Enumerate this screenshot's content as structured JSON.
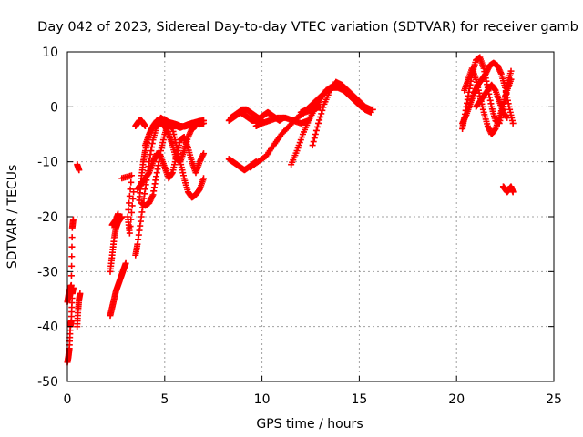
{
  "chart_data": {
    "type": "scatter",
    "title": "Day 042 of 2023, Sidereal Day-to-day VTEC variation (SDTVAR) for receiver gamb",
    "xlabel": "GPS time / hours",
    "ylabel": "SDTVAR / TECUs",
    "xlim": [
      0,
      25
    ],
    "ylim": [
      -50,
      10
    ],
    "xticks": [
      0,
      5,
      10,
      15,
      20,
      25
    ],
    "yticks": [
      -50,
      -40,
      -30,
      -20,
      -10,
      0,
      10
    ],
    "xtick_labels": [
      "0",
      "5",
      "10",
      "15",
      "20",
      "25"
    ],
    "ytick_labels": [
      "-50",
      "-40",
      "-30",
      "-20",
      "-10",
      "0",
      "10"
    ],
    "grid": true,
    "marker": "+",
    "color": "#ff0000",
    "series": [
      {
        "name": "s1",
        "x": [
          0.0,
          0.05,
          0.1,
          0.15,
          0.2,
          0.25,
          0.3
        ],
        "y": [
          -46.5,
          -45.5,
          -44.0,
          -40.0,
          -39.0,
          -34.0,
          -33.0
        ]
      },
      {
        "name": "s2",
        "x": [
          0.0,
          0.05,
          0.1,
          0.15,
          0.2,
          0.25,
          0.3
        ],
        "y": [
          -35.5,
          -34.5,
          -33.5,
          -33.0,
          -32.5,
          -22.0,
          -20.5
        ]
      },
      {
        "name": "s3",
        "x": [
          0.5,
          0.55,
          0.6,
          0.65
        ],
        "y": [
          -40.0,
          -37.0,
          -35.0,
          -34.0
        ]
      },
      {
        "name": "s4",
        "x": [
          0.5,
          0.6
        ],
        "y": [
          -10.5,
          -11.5
        ]
      },
      {
        "name": "s5",
        "x": [
          2.2,
          2.3,
          2.4,
          2.5,
          2.6,
          2.7,
          2.8,
          2.9,
          3.0
        ],
        "y": [
          -38.0,
          -36.5,
          -35.0,
          -33.5,
          -32.5,
          -31.5,
          -30.5,
          -29.5,
          -28.5
        ]
      },
      {
        "name": "s6",
        "x": [
          2.2,
          2.3,
          2.4,
          2.5,
          2.6,
          2.7,
          2.8
        ],
        "y": [
          -30.0,
          -27.0,
          -24.0,
          -22.0,
          -21.0,
          -20.5,
          -20.0
        ]
      },
      {
        "name": "s7",
        "x": [
          2.3,
          2.4,
          2.5,
          2.6
        ],
        "y": [
          -21.5,
          -21.0,
          -20.5,
          -19.5
        ]
      },
      {
        "name": "s8",
        "x": [
          2.8,
          3.3,
          3.1,
          3.2,
          3.4
        ],
        "y": [
          -13.0,
          -12.5,
          -20.0,
          -23.0,
          -15.5
        ]
      },
      {
        "name": "s9",
        "x": [
          3.5,
          3.6,
          3.8,
          4.0,
          4.2,
          4.4,
          4.6,
          4.8,
          5.0,
          5.2,
          5.4,
          5.6,
          5.8,
          6.0,
          6.2,
          6.4,
          6.6,
          6.8,
          7.0
        ],
        "y": [
          -27.0,
          -25.0,
          -20.0,
          -15.0,
          -10.0,
          -6.0,
          -3.5,
          -2.0,
          -2.5,
          -3.0,
          -3.3,
          -3.5,
          -3.8,
          -3.5,
          -3.2,
          -3.0,
          -3.0,
          -3.2,
          -3.0
        ]
      },
      {
        "name": "s10",
        "x": [
          3.7,
          3.8,
          3.9,
          4.0,
          4.2,
          4.4,
          4.6,
          4.8,
          5.0,
          5.2,
          5.4,
          5.6,
          5.8,
          6.0,
          6.2,
          6.4,
          6.6,
          6.8,
          7.0
        ],
        "y": [
          -17.0,
          -13.0,
          -10.0,
          -8.0,
          -5.0,
          -3.5,
          -2.5,
          -2.2,
          -2.3,
          -2.8,
          -3.0,
          -3.2,
          -3.5,
          -3.6,
          -3.4,
          -3.0,
          -2.8,
          -2.6,
          -2.5
        ]
      },
      {
        "name": "s11",
        "x": [
          3.8,
          4.0,
          4.2,
          4.4,
          4.6,
          4.8,
          5.0,
          5.2,
          5.4,
          5.6,
          5.8,
          6.0,
          6.2,
          6.4,
          6.6,
          6.8,
          7.0
        ],
        "y": [
          -17.5,
          -18.0,
          -17.5,
          -16.0,
          -12.0,
          -8.0,
          -5.0,
          -3.0,
          -4.0,
          -7.0,
          -10.0,
          -13.0,
          -15.5,
          -16.5,
          -16.0,
          -15.0,
          -13.0
        ]
      },
      {
        "name": "s12",
        "x": [
          3.6,
          3.8,
          4.0,
          4.2,
          4.4,
          4.6,
          4.8,
          5.0,
          5.2,
          5.4,
          5.6,
          5.8,
          6.0,
          6.2,
          6.4,
          6.6,
          6.8,
          7.0
        ],
        "y": [
          -15.0,
          -14.0,
          -13.0,
          -12.0,
          -10.0,
          -8.5,
          -9.0,
          -11.0,
          -13.0,
          -12.0,
          -9.0,
          -6.0,
          -5.5,
          -7.5,
          -10.0,
          -12.0,
          -10.0,
          -8.5
        ]
      },
      {
        "name": "s13",
        "x": [
          4.0,
          4.2,
          4.4,
          4.6,
          4.8,
          5.0,
          5.2,
          5.4,
          5.6,
          5.8,
          6.0,
          6.2,
          6.4,
          6.6
        ],
        "y": [
          -7.0,
          -5.0,
          -3.5,
          -3.0,
          -3.0,
          -3.5,
          -5.0,
          -7.0,
          -9.5,
          -10.0,
          -8.0,
          -5.5,
          -4.0,
          -3.5
        ]
      },
      {
        "name": "s14",
        "x": [
          3.5,
          3.6,
          3.7,
          3.8,
          3.9,
          4.0
        ],
        "y": [
          -3.5,
          -3.0,
          -2.5,
          -2.5,
          -3.0,
          -3.5
        ]
      },
      {
        "name": "s15",
        "x": [
          8.3,
          8.5,
          8.7,
          8.9,
          9.1,
          9.3,
          9.5,
          9.7
        ],
        "y": [
          -9.5,
          -10.0,
          -10.5,
          -11.0,
          -11.5,
          -11.0,
          -10.5,
          -10.0
        ]
      },
      {
        "name": "s16",
        "x": [
          8.3,
          8.5,
          8.7,
          8.9,
          9.1,
          9.3,
          9.5,
          9.7,
          9.9,
          10.1,
          10.3,
          10.5,
          10.7,
          10.9,
          11.1
        ],
        "y": [
          -2.5,
          -2.0,
          -1.5,
          -1.0,
          -1.5,
          -2.0,
          -2.5,
          -2.5,
          -2.0,
          -1.5,
          -1.0,
          -1.5,
          -2.0,
          -2.5,
          -2.0
        ]
      },
      {
        "name": "s17",
        "x": [
          8.4,
          8.6,
          8.8,
          9.0,
          9.2,
          9.4,
          9.6,
          9.8,
          10.0
        ],
        "y": [
          -2.0,
          -1.5,
          -1.0,
          -0.5,
          -0.5,
          -1.0,
          -1.5,
          -2.0,
          -2.5
        ]
      },
      {
        "name": "s18",
        "x": [
          9.7,
          10.0,
          10.4,
          10.8,
          11.2,
          11.6,
          12.0,
          12.4
        ],
        "y": [
          -3.5,
          -3.0,
          -2.5,
          -2.0,
          -2.0,
          -2.5,
          -3.0,
          -2.5
        ]
      },
      {
        "name": "s19",
        "x": [
          9.4,
          9.8,
          10.2,
          10.6,
          11.0,
          11.4,
          11.8,
          12.2,
          12.6,
          13.0
        ],
        "y": [
          -11.0,
          -10.0,
          -9.0,
          -7.0,
          -5.0,
          -3.5,
          -2.0,
          -1.0,
          -0.5,
          0.0
        ]
      },
      {
        "name": "s20",
        "x": [
          11.5,
          11.8,
          12.1,
          12.4,
          12.7,
          13.0,
          13.3,
          13.6,
          13.9,
          14.2,
          14.5,
          14.8,
          15.1,
          15.4,
          15.7
        ],
        "y": [
          -10.5,
          -8.0,
          -5.0,
          -2.5,
          -0.5,
          1.5,
          3.0,
          3.5,
          3.5,
          3.0,
          2.0,
          1.0,
          0.0,
          -0.5,
          -0.5
        ]
      },
      {
        "name": "s21",
        "x": [
          12.6,
          12.9,
          13.2,
          13.5,
          13.8,
          14.1,
          14.4,
          14.7,
          15.0,
          15.3,
          15.6
        ],
        "y": [
          -7.0,
          -3.0,
          0.5,
          3.0,
          4.5,
          4.0,
          3.0,
          2.0,
          1.0,
          0.0,
          -0.5
        ]
      },
      {
        "name": "s22",
        "x": [
          12.0,
          12.3,
          12.6,
          12.9,
          13.2,
          13.5,
          13.8,
          14.1,
          14.4,
          14.7,
          15.0,
          15.3,
          15.6
        ],
        "y": [
          -1.0,
          -0.5,
          0.5,
          1.5,
          2.5,
          3.5,
          4.0,
          3.5,
          2.5,
          1.5,
          0.5,
          -0.5,
          -1.0
        ]
      },
      {
        "name": "s23",
        "x": [
          20.3,
          20.4,
          20.6,
          20.8,
          21.0,
          21.2,
          21.4,
          21.6,
          21.8,
          22.0,
          22.2,
          22.4,
          22.6,
          22.8
        ],
        "y": [
          -4.0,
          -2.0,
          2.0,
          6.0,
          8.5,
          9.0,
          7.0,
          3.5,
          0.0,
          -2.5,
          -3.0,
          0.0,
          4.0,
          6.5
        ]
      },
      {
        "name": "s24",
        "x": [
          20.3,
          20.5,
          20.7,
          20.9,
          21.1,
          21.3,
          21.5,
          21.7,
          21.9,
          22.1,
          22.3,
          22.5,
          22.7,
          22.9
        ],
        "y": [
          -3.0,
          -1.5,
          0.5,
          2.5,
          4.0,
          5.0,
          6.0,
          7.5,
          8.0,
          7.5,
          6.0,
          3.5,
          0.0,
          -3.0
        ]
      },
      {
        "name": "s25",
        "x": [
          20.4,
          20.6,
          20.8,
          21.0,
          21.2,
          21.4,
          21.6,
          21.8,
          22.0,
          22.2,
          22.4,
          22.6,
          22.8
        ],
        "y": [
          3.0,
          5.0,
          7.0,
          5.0,
          2.0,
          -1.0,
          -3.5,
          -5.0,
          -4.0,
          -2.0,
          0.5,
          3.0,
          5.0
        ]
      },
      {
        "name": "s26",
        "x": [
          21.0,
          21.2,
          21.4,
          21.6,
          21.8,
          22.0,
          22.2,
          22.4,
          22.6
        ],
        "y": [
          0.0,
          1.0,
          2.0,
          3.0,
          4.0,
          3.0,
          1.0,
          -1.0,
          -2.0
        ]
      },
      {
        "name": "s27",
        "x": [
          22.4,
          22.5,
          22.6,
          22.7,
          22.8,
          22.9
        ],
        "y": [
          -14.5,
          -15.0,
          -15.5,
          -15.0,
          -14.5,
          -15.5
        ]
      }
    ]
  }
}
